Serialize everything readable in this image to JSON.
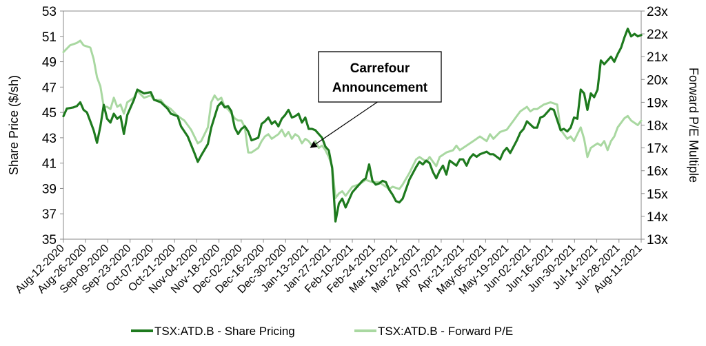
{
  "chart_data": {
    "type": "line",
    "title": "",
    "ylabel_left": "Share Price ($/sh)",
    "ylabel_right": "Forward P/E Multiple",
    "ylim_left": [
      35,
      53
    ],
    "ylim_right": [
      13,
      23
    ],
    "yticks_left": [
      "35",
      "37",
      "39",
      "41",
      "43",
      "45",
      "47",
      "49",
      "51",
      "53"
    ],
    "yticks_right": [
      "13x",
      "14x",
      "15x",
      "16x",
      "17x",
      "18x",
      "19x",
      "20x",
      "21x",
      "22x",
      "23x"
    ],
    "x_tick_labels": [
      "Aug-12-2020",
      "Aug-26-2020",
      "Sep-09-2020",
      "Sep-23-2020",
      "Oct-07-2020",
      "Oct-21-2020",
      "Nov-04-2020",
      "Nov-18-2020",
      "Dec-02-2020",
      "Dec-16-2020",
      "Dec-30-2020",
      "Jan-13-2021",
      "Jan-27-2021",
      "Feb-10-2021",
      "Feb-24-2021",
      "Mar-10-2021",
      "Mar-24-2021",
      "Apr-07-2021",
      "Apr-21-2021",
      "May-05-2021",
      "May-19-2021",
      "Jun-02-2021",
      "Jun-16-2021",
      "Jun-30-2021",
      "Jul-14-2021",
      "Jul-28-2021",
      "Aug-11-2021"
    ],
    "grid": false,
    "legend_position": "bottom",
    "annotation": {
      "line1": "Carrefour",
      "line2": "Announcement",
      "target_x": "Jan-13-2021"
    },
    "series": [
      {
        "name": "TSX:ATD.B - Share Pricing",
        "axis": "left",
        "color": "#1e7a1e",
        "points": [
          [
            0,
            44.7
          ],
          [
            1,
            45.3
          ],
          [
            3,
            45.4
          ],
          [
            4,
            45.5
          ],
          [
            5,
            45.8
          ],
          [
            6,
            45.2
          ],
          [
            7,
            45.0
          ],
          [
            8,
            44.3
          ],
          [
            9,
            43.6
          ],
          [
            10,
            42.6
          ],
          [
            11,
            43.9
          ],
          [
            12,
            45.6
          ],
          [
            13,
            44.5
          ],
          [
            14,
            44.2
          ],
          [
            15,
            44.9
          ],
          [
            16,
            44.5
          ],
          [
            17,
            44.7
          ],
          [
            18,
            43.3
          ],
          [
            19,
            44.8
          ],
          [
            21,
            46.0
          ],
          [
            22,
            46.8
          ],
          [
            24,
            46.5
          ],
          [
            26,
            46.6
          ],
          [
            27,
            46.0
          ],
          [
            29,
            45.8
          ],
          [
            31,
            45.3
          ],
          [
            32,
            44.9
          ],
          [
            34,
            44.7
          ],
          [
            35,
            43.9
          ],
          [
            37,
            43.1
          ],
          [
            39,
            41.8
          ],
          [
            40,
            41.1
          ],
          [
            41,
            41.6
          ],
          [
            43,
            42.5
          ],
          [
            44,
            43.8
          ],
          [
            46,
            45.5
          ],
          [
            47,
            45.8
          ],
          [
            48,
            45.4
          ],
          [
            49,
            45.5
          ],
          [
            50,
            45.1
          ],
          [
            51,
            43.8
          ],
          [
            52,
            43.3
          ],
          [
            53,
            43.7
          ],
          [
            54,
            43.9
          ],
          [
            55,
            43.5
          ],
          [
            56,
            42.8
          ],
          [
            57,
            42.9
          ],
          [
            58,
            43.0
          ],
          [
            59,
            44.1
          ],
          [
            60,
            44.3
          ],
          [
            61,
            44.6
          ],
          [
            62,
            44.1
          ],
          [
            63,
            44.3
          ],
          [
            64,
            43.9
          ],
          [
            65,
            44.5
          ],
          [
            66,
            44.8
          ],
          [
            67,
            45.2
          ],
          [
            68,
            44.6
          ],
          [
            69,
            44.7
          ],
          [
            70,
            44.9
          ],
          [
            71,
            44.2
          ],
          [
            72,
            44.6
          ],
          [
            73,
            43.7
          ],
          [
            74,
            43.7
          ],
          [
            75,
            43.6
          ],
          [
            76,
            43.3
          ],
          [
            77,
            43.0
          ],
          [
            78,
            42.3
          ],
          [
            79,
            42.0
          ],
          [
            80,
            40.6
          ],
          [
            81,
            36.4
          ],
          [
            82,
            37.8
          ],
          [
            83,
            38.2
          ],
          [
            84,
            37.5
          ],
          [
            86,
            38.7
          ],
          [
            87,
            39.0
          ],
          [
            89,
            39.6
          ],
          [
            90,
            39.8
          ],
          [
            91,
            40.9
          ],
          [
            92,
            39.6
          ],
          [
            93,
            39.3
          ],
          [
            94,
            39.4
          ],
          [
            95,
            39.6
          ],
          [
            96,
            39.5
          ],
          [
            97,
            38.9
          ],
          [
            98,
            38.5
          ],
          [
            99,
            38.0
          ],
          [
            100,
            37.9
          ],
          [
            101,
            38.2
          ],
          [
            103,
            39.7
          ],
          [
            105,
            40.7
          ],
          [
            106,
            41.1
          ],
          [
            107,
            40.9
          ],
          [
            108,
            41.2
          ],
          [
            109,
            41.0
          ],
          [
            110,
            40.3
          ],
          [
            111,
            39.8
          ],
          [
            112,
            40.4
          ],
          [
            113,
            40.8
          ],
          [
            114,
            40.1
          ],
          [
            115,
            41.2
          ],
          [
            116,
            41.0
          ],
          [
            117,
            40.8
          ],
          [
            118,
            41.3
          ],
          [
            119,
            41.3
          ],
          [
            120,
            40.8
          ],
          [
            121,
            41.4
          ],
          [
            122,
            41.7
          ],
          [
            123,
            41.5
          ],
          [
            124,
            41.7
          ],
          [
            126,
            41.9
          ],
          [
            127,
            41.7
          ],
          [
            128,
            41.7
          ],
          [
            129,
            41.5
          ],
          [
            130,
            41.3
          ],
          [
            131,
            41.9
          ],
          [
            132,
            42.2
          ],
          [
            133,
            41.8
          ],
          [
            134,
            42.3
          ],
          [
            135,
            42.8
          ],
          [
            136,
            43.4
          ],
          [
            137,
            43.7
          ],
          [
            138,
            44.3
          ],
          [
            140,
            43.8
          ],
          [
            141,
            43.8
          ],
          [
            142,
            44.6
          ],
          [
            143,
            44.7
          ],
          [
            144,
            45.0
          ],
          [
            145,
            45.3
          ],
          [
            146,
            45.2
          ],
          [
            147,
            44.4
          ],
          [
            148,
            43.6
          ],
          [
            149,
            43.7
          ],
          [
            150,
            43.5
          ],
          [
            151,
            43.8
          ],
          [
            152,
            44.6
          ],
          [
            153,
            44.5
          ],
          [
            154,
            46.8
          ],
          [
            155,
            46.5
          ],
          [
            156,
            45.2
          ],
          [
            157,
            46.5
          ],
          [
            158,
            46.2
          ],
          [
            159,
            46.8
          ],
          [
            160,
            49.1
          ],
          [
            161,
            48.8
          ],
          [
            163,
            49.4
          ],
          [
            164,
            49.0
          ],
          [
            165,
            49.6
          ],
          [
            166,
            50.1
          ],
          [
            167,
            50.9
          ],
          [
            168,
            51.6
          ],
          [
            169,
            51.0
          ],
          [
            170,
            51.2
          ],
          [
            171,
            51.0
          ],
          [
            172,
            51.1
          ]
        ]
      },
      {
        "name": "TSX:ATD.B - Forward P/E",
        "axis": "right",
        "color": "#a9d8a1",
        "points": [
          [
            0,
            21.2
          ],
          [
            2,
            21.5
          ],
          [
            4,
            21.6
          ],
          [
            5,
            21.7
          ],
          [
            6,
            21.5
          ],
          [
            8,
            21.4
          ],
          [
            9,
            20.9
          ],
          [
            10,
            20.1
          ],
          [
            11,
            19.7
          ],
          [
            12,
            18.8
          ],
          [
            13,
            18.8
          ],
          [
            14,
            18.7
          ],
          [
            15,
            19.2
          ],
          [
            16,
            18.8
          ],
          [
            17,
            18.9
          ],
          [
            18,
            18.5
          ],
          [
            19,
            19.0
          ],
          [
            21,
            19.2
          ],
          [
            22,
            19.5
          ],
          [
            24,
            19.2
          ],
          [
            26,
            19.3
          ],
          [
            27,
            19.1
          ],
          [
            29,
            19.1
          ],
          [
            30,
            18.9
          ],
          [
            32,
            18.7
          ],
          [
            34,
            18.4
          ],
          [
            36,
            18.2
          ],
          [
            38,
            17.8
          ],
          [
            40,
            17.2
          ],
          [
            41,
            17.3
          ],
          [
            43,
            17.9
          ],
          [
            44,
            19.0
          ],
          [
            45,
            19.3
          ],
          [
            46,
            19.1
          ],
          [
            47,
            19.2
          ],
          [
            48,
            18.8
          ],
          [
            49,
            18.7
          ],
          [
            50,
            18.5
          ],
          [
            51,
            18.3
          ],
          [
            52,
            18.2
          ],
          [
            53,
            18.2
          ],
          [
            54,
            17.9
          ],
          [
            55,
            16.8
          ],
          [
            56,
            16.8
          ],
          [
            58,
            17.0
          ],
          [
            59,
            17.3
          ],
          [
            60,
            17.5
          ],
          [
            61,
            17.6
          ],
          [
            62,
            17.4
          ],
          [
            64,
            17.6
          ],
          [
            65,
            17.8
          ],
          [
            66,
            17.5
          ],
          [
            67,
            17.7
          ],
          [
            68,
            17.4
          ],
          [
            69,
            17.6
          ],
          [
            70,
            17.5
          ],
          [
            71,
            17.2
          ],
          [
            72,
            17.4
          ],
          [
            73,
            17.3
          ],
          [
            74,
            17.1
          ],
          [
            75,
            17.3
          ],
          [
            76,
            17.0
          ],
          [
            77,
            17.1
          ],
          [
            78,
            16.9
          ],
          [
            79,
            16.6
          ],
          [
            80,
            16.2
          ],
          [
            81,
            14.8
          ],
          [
            82,
            15.0
          ],
          [
            83,
            15.1
          ],
          [
            84,
            14.9
          ],
          [
            86,
            15.3
          ],
          [
            88,
            15.4
          ],
          [
            90,
            15.6
          ],
          [
            92,
            15.5
          ],
          [
            94,
            15.5
          ],
          [
            95,
            15.4
          ],
          [
            96,
            15.3
          ],
          [
            97,
            15.2
          ],
          [
            98,
            15.3
          ],
          [
            100,
            15.2
          ],
          [
            101,
            15.4
          ],
          [
            103,
            15.9
          ],
          [
            104,
            16.2
          ],
          [
            105,
            16.5
          ],
          [
            106,
            16.6
          ],
          [
            108,
            16.4
          ],
          [
            109,
            16.6
          ],
          [
            110,
            16.4
          ],
          [
            111,
            16.2
          ],
          [
            112,
            16.6
          ],
          [
            114,
            16.8
          ],
          [
            116,
            16.9
          ],
          [
            117,
            17.1
          ],
          [
            118,
            16.9
          ],
          [
            120,
            17.1
          ],
          [
            122,
            17.3
          ],
          [
            124,
            17.5
          ],
          [
            126,
            17.3
          ],
          [
            127,
            17.6
          ],
          [
            128,
            17.4
          ],
          [
            130,
            17.7
          ],
          [
            132,
            17.8
          ],
          [
            133,
            18.0
          ],
          [
            134,
            18.2
          ],
          [
            135,
            18.4
          ],
          [
            136,
            18.6
          ],
          [
            137,
            18.7
          ],
          [
            138,
            18.8
          ],
          [
            139,
            18.6
          ],
          [
            140,
            18.7
          ],
          [
            141,
            18.7
          ],
          [
            142,
            18.8
          ],
          [
            143,
            18.9
          ],
          [
            145,
            19.0
          ],
          [
            147,
            18.9
          ],
          [
            148,
            17.8
          ],
          [
            149,
            17.6
          ],
          [
            150,
            17.4
          ],
          [
            151,
            17.5
          ],
          [
            152,
            17.3
          ],
          [
            153,
            17.6
          ],
          [
            154,
            17.9
          ],
          [
            155,
            17.4
          ],
          [
            156,
            16.6
          ],
          [
            157,
            17.0
          ],
          [
            158,
            17.1
          ],
          [
            159,
            17.2
          ],
          [
            160,
            17.1
          ],
          [
            161,
            17.3
          ],
          [
            162,
            16.9
          ],
          [
            163,
            17.3
          ],
          [
            164,
            17.5
          ],
          [
            165,
            17.9
          ],
          [
            166,
            18.1
          ],
          [
            167,
            18.3
          ],
          [
            168,
            18.4
          ],
          [
            169,
            18.2
          ],
          [
            170,
            18.1
          ],
          [
            171,
            18.0
          ],
          [
            172,
            18.2
          ]
        ]
      }
    ]
  }
}
